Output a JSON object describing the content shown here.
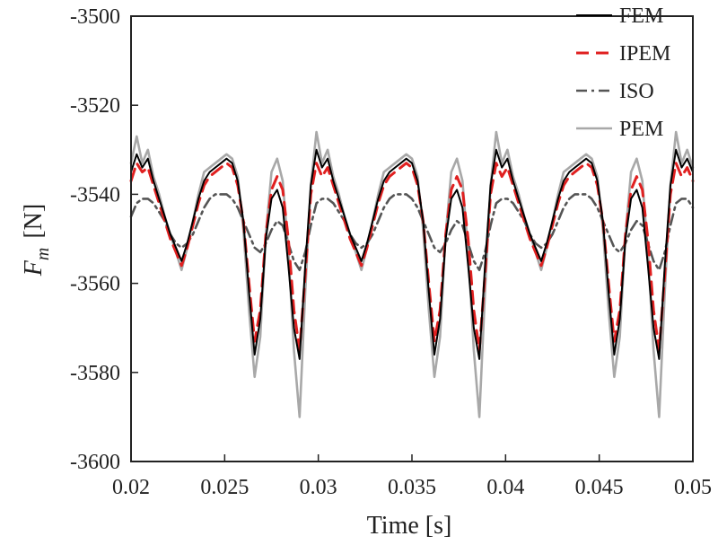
{
  "chart_data": {
    "type": "line",
    "xlabel": "Time [s]",
    "ylabel_main": "F",
    "ylabel_sub": "m",
    "ylabel_unit": "[N]",
    "xlim": [
      0.02,
      0.05
    ],
    "ylim": [
      -3600,
      -3500
    ],
    "xticks": [
      0.02,
      0.025,
      0.03,
      0.035,
      0.04,
      0.045,
      0.05
    ],
    "xtick_labels": [
      "0.02",
      "0.025",
      "0.03",
      "0.035",
      "0.04",
      "0.045",
      "0.05"
    ],
    "yticks": [
      -3500,
      -3520,
      -3540,
      -3560,
      -3580,
      -3600
    ],
    "ytick_labels": [
      "-3500",
      "-3520",
      "-3540",
      "-3560",
      "-3580",
      "-3600"
    ],
    "grid": false,
    "legend_position": "top-right",
    "series": [
      {
        "name": "FEM",
        "color": "#000000",
        "dash": "solid",
        "x": [
          0.02,
          0.0203,
          0.0206,
          0.0209,
          0.0212,
          0.0215,
          0.0218,
          0.0221,
          0.0224,
          0.0227,
          0.023,
          0.0233,
          0.0236,
          0.0239,
          0.0242,
          0.0245,
          0.0248,
          0.0251,
          0.0254,
          0.0257,
          0.026,
          0.0263,
          0.0266,
          0.0269,
          0.0272,
          0.0275,
          0.0278,
          0.0281,
          0.0284,
          0.0287,
          0.029,
          0.0293,
          0.0296,
          0.0299,
          0.0302,
          0.0305,
          0.0308,
          0.0311,
          0.0314,
          0.0317,
          0.032,
          0.0323,
          0.0326,
          0.0329,
          0.0332,
          0.0335,
          0.0338,
          0.0341,
          0.0344,
          0.0347,
          0.035,
          0.0353,
          0.0356,
          0.0359,
          0.0362,
          0.0365,
          0.0368,
          0.0371,
          0.0374,
          0.0377,
          0.038,
          0.0383,
          0.0386,
          0.0389,
          0.0392,
          0.0395,
          0.0398,
          0.0401,
          0.0404,
          0.0407,
          0.041,
          0.0413,
          0.0416,
          0.0419,
          0.0422,
          0.0425,
          0.0428,
          0.0431,
          0.0434,
          0.0437,
          0.044,
          0.0443,
          0.0446,
          0.0449,
          0.0452,
          0.0455,
          0.0458,
          0.0461,
          0.0464,
          0.0467,
          0.047,
          0.0473,
          0.0476,
          0.0479,
          0.0482,
          0.0485,
          0.0488,
          0.0491,
          0.0494,
          0.0497,
          0.05
        ],
        "y": [
          -3535,
          -3531,
          -3534,
          -3532,
          -3537,
          -3541,
          -3545,
          -3549,
          -3552,
          -3555,
          -3551,
          -3546,
          -3541,
          -3537,
          -3535,
          -3534,
          -3533,
          -3532,
          -3533,
          -3537,
          -3546,
          -3562,
          -3576,
          -3568,
          -3550,
          -3541,
          -3539,
          -3543,
          -3556,
          -3570,
          -3577,
          -3556,
          -3538,
          -3530,
          -3534,
          -3532,
          -3537,
          -3541,
          -3545,
          -3549,
          -3552,
          -3555,
          -3551,
          -3546,
          -3541,
          -3537,
          -3535,
          -3534,
          -3533,
          -3532,
          -3533,
          -3537,
          -3546,
          -3562,
          -3576,
          -3568,
          -3550,
          -3541,
          -3539,
          -3543,
          -3556,
          -3570,
          -3577,
          -3556,
          -3538,
          -3530,
          -3534,
          -3532,
          -3537,
          -3541,
          -3545,
          -3549,
          -3552,
          -3555,
          -3551,
          -3546,
          -3541,
          -3537,
          -3535,
          -3534,
          -3533,
          -3532,
          -3533,
          -3537,
          -3546,
          -3562,
          -3576,
          -3568,
          -3550,
          -3541,
          -3539,
          -3543,
          -3556,
          -3570,
          -3577,
          -3556,
          -3538,
          -3530,
          -3534,
          -3532,
          -3535
        ]
      },
      {
        "name": "IPEM",
        "color": "#e02020",
        "dash": "dashed",
        "x": [
          0.02,
          0.0203,
          0.0206,
          0.0209,
          0.0212,
          0.0215,
          0.0218,
          0.0221,
          0.0224,
          0.0227,
          0.023,
          0.0233,
          0.0236,
          0.0239,
          0.0242,
          0.0245,
          0.0248,
          0.0251,
          0.0254,
          0.0257,
          0.026,
          0.0263,
          0.0266,
          0.0269,
          0.0272,
          0.0275,
          0.0278,
          0.0281,
          0.0284,
          0.0287,
          0.029,
          0.0293,
          0.0296,
          0.0299,
          0.0302,
          0.0305,
          0.0308,
          0.0311,
          0.0314,
          0.0317,
          0.032,
          0.0323,
          0.0326,
          0.0329,
          0.0332,
          0.0335,
          0.0338,
          0.0341,
          0.0344,
          0.0347,
          0.035,
          0.0353,
          0.0356,
          0.0359,
          0.0362,
          0.0365,
          0.0368,
          0.0371,
          0.0374,
          0.0377,
          0.038,
          0.0383,
          0.0386,
          0.0389,
          0.0392,
          0.0395,
          0.0398,
          0.0401,
          0.0404,
          0.0407,
          0.041,
          0.0413,
          0.0416,
          0.0419,
          0.0422,
          0.0425,
          0.0428,
          0.0431,
          0.0434,
          0.0437,
          0.044,
          0.0443,
          0.0446,
          0.0449,
          0.0452,
          0.0455,
          0.0458,
          0.0461,
          0.0464,
          0.0467,
          0.047,
          0.0473,
          0.0476,
          0.0479,
          0.0482,
          0.0485,
          0.0488,
          0.0491,
          0.0494,
          0.0497,
          0.05
        ],
        "y": [
          -3537,
          -3533,
          -3535,
          -3534,
          -3538,
          -3542,
          -3546,
          -3550,
          -3553,
          -3556,
          -3552,
          -3547,
          -3542,
          -3538,
          -3536,
          -3535,
          -3534,
          -3533,
          -3534,
          -3538,
          -3546,
          -3560,
          -3573,
          -3566,
          -3549,
          -3539,
          -3536,
          -3539,
          -3550,
          -3566,
          -3575,
          -3558,
          -3540,
          -3533,
          -3536,
          -3534,
          -3538,
          -3542,
          -3546,
          -3550,
          -3553,
          -3556,
          -3552,
          -3547,
          -3542,
          -3538,
          -3536,
          -3535,
          -3534,
          -3533,
          -3534,
          -3538,
          -3546,
          -3560,
          -3573,
          -3566,
          -3549,
          -3539,
          -3536,
          -3539,
          -3550,
          -3566,
          -3575,
          -3558,
          -3540,
          -3533,
          -3536,
          -3534,
          -3538,
          -3542,
          -3546,
          -3550,
          -3553,
          -3556,
          -3552,
          -3547,
          -3542,
          -3538,
          -3536,
          -3535,
          -3534,
          -3533,
          -3534,
          -3538,
          -3546,
          -3560,
          -3573,
          -3566,
          -3549,
          -3539,
          -3536,
          -3539,
          -3550,
          -3566,
          -3575,
          -3558,
          -3540,
          -3533,
          -3536,
          -3534,
          -3537
        ]
      },
      {
        "name": "ISO",
        "color": "#555555",
        "dash": "dashdot",
        "x": [
          0.02,
          0.0203,
          0.0206,
          0.0209,
          0.0212,
          0.0215,
          0.0218,
          0.0221,
          0.0224,
          0.0227,
          0.023,
          0.0233,
          0.0236,
          0.0239,
          0.0242,
          0.0245,
          0.0248,
          0.0251,
          0.0254,
          0.0257,
          0.026,
          0.0263,
          0.0266,
          0.0269,
          0.0272,
          0.0275,
          0.0278,
          0.0281,
          0.0284,
          0.0287,
          0.029,
          0.0293,
          0.0296,
          0.0299,
          0.0302,
          0.0305,
          0.0308,
          0.0311,
          0.0314,
          0.0317,
          0.032,
          0.0323,
          0.0326,
          0.0329,
          0.0332,
          0.0335,
          0.0338,
          0.0341,
          0.0344,
          0.0347,
          0.035,
          0.0353,
          0.0356,
          0.0359,
          0.0362,
          0.0365,
          0.0368,
          0.0371,
          0.0374,
          0.0377,
          0.038,
          0.0383,
          0.0386,
          0.0389,
          0.0392,
          0.0395,
          0.0398,
          0.0401,
          0.0404,
          0.0407,
          0.041,
          0.0413,
          0.0416,
          0.0419,
          0.0422,
          0.0425,
          0.0428,
          0.0431,
          0.0434,
          0.0437,
          0.044,
          0.0443,
          0.0446,
          0.0449,
          0.0452,
          0.0455,
          0.0458,
          0.0461,
          0.0464,
          0.0467,
          0.047,
          0.0473,
          0.0476,
          0.0479,
          0.0482,
          0.0485,
          0.0488,
          0.0491,
          0.0494,
          0.0497,
          0.05
        ],
        "y": [
          -3545,
          -3542,
          -3541,
          -3541,
          -3542,
          -3544,
          -3546,
          -3549,
          -3551,
          -3552,
          -3551,
          -3549,
          -3546,
          -3543,
          -3541,
          -3540,
          -3540,
          -3540,
          -3541,
          -3543,
          -3546,
          -3549,
          -3552,
          -3553,
          -3551,
          -3548,
          -3546,
          -3547,
          -3551,
          -3555,
          -3557,
          -3553,
          -3547,
          -3542,
          -3541,
          -3541,
          -3542,
          -3544,
          -3546,
          -3549,
          -3551,
          -3552,
          -3551,
          -3549,
          -3546,
          -3543,
          -3541,
          -3540,
          -3540,
          -3540,
          -3541,
          -3543,
          -3546,
          -3549,
          -3552,
          -3553,
          -3551,
          -3548,
          -3546,
          -3547,
          -3551,
          -3555,
          -3557,
          -3553,
          -3547,
          -3542,
          -3541,
          -3541,
          -3542,
          -3544,
          -3546,
          -3549,
          -3551,
          -3552,
          -3551,
          -3549,
          -3546,
          -3543,
          -3541,
          -3540,
          -3540,
          -3540,
          -3541,
          -3543,
          -3546,
          -3549,
          -3552,
          -3553,
          -3551,
          -3548,
          -3546,
          -3547,
          -3551,
          -3555,
          -3557,
          -3553,
          -3547,
          -3542,
          -3541,
          -3541,
          -3543
        ]
      },
      {
        "name": "PEM",
        "color": "#a8a8a8",
        "dash": "solid",
        "x": [
          0.02,
          0.0203,
          0.0206,
          0.0209,
          0.0212,
          0.0215,
          0.0218,
          0.0221,
          0.0224,
          0.0227,
          0.023,
          0.0233,
          0.0236,
          0.0239,
          0.0242,
          0.0245,
          0.0248,
          0.0251,
          0.0254,
          0.0257,
          0.026,
          0.0263,
          0.0266,
          0.0269,
          0.0272,
          0.0275,
          0.0278,
          0.0281,
          0.0284,
          0.0287,
          0.029,
          0.0293,
          0.0296,
          0.0299,
          0.0302,
          0.0305,
          0.0308,
          0.0311,
          0.0314,
          0.0317,
          0.032,
          0.0323,
          0.0326,
          0.0329,
          0.0332,
          0.0335,
          0.0338,
          0.0341,
          0.0344,
          0.0347,
          0.035,
          0.0353,
          0.0356,
          0.0359,
          0.0362,
          0.0365,
          0.0368,
          0.0371,
          0.0374,
          0.0377,
          0.038,
          0.0383,
          0.0386,
          0.0389,
          0.0392,
          0.0395,
          0.0398,
          0.0401,
          0.0404,
          0.0407,
          0.041,
          0.0413,
          0.0416,
          0.0419,
          0.0422,
          0.0425,
          0.0428,
          0.0431,
          0.0434,
          0.0437,
          0.044,
          0.0443,
          0.0446,
          0.0449,
          0.0452,
          0.0455,
          0.0458,
          0.0461,
          0.0464,
          0.0467,
          0.047,
          0.0473,
          0.0476,
          0.0479,
          0.0482,
          0.0485,
          0.0488,
          0.0491,
          0.0494,
          0.0497,
          0.05
        ],
        "y": [
          -3533,
          -3527,
          -3533,
          -3530,
          -3536,
          -3540,
          -3545,
          -3549,
          -3553,
          -3557,
          -3552,
          -3546,
          -3540,
          -3535,
          -3534,
          -3533,
          -3532,
          -3531,
          -3532,
          -3536,
          -3548,
          -3566,
          -3581,
          -3572,
          -3549,
          -3535,
          -3532,
          -3537,
          -3553,
          -3575,
          -3590,
          -3562,
          -3538,
          -3526,
          -3533,
          -3530,
          -3536,
          -3540,
          -3545,
          -3549,
          -3553,
          -3557,
          -3552,
          -3546,
          -3540,
          -3535,
          -3534,
          -3533,
          -3532,
          -3531,
          -3532,
          -3536,
          -3548,
          -3566,
          -3581,
          -3572,
          -3549,
          -3535,
          -3532,
          -3537,
          -3553,
          -3575,
          -3590,
          -3562,
          -3538,
          -3526,
          -3533,
          -3530,
          -3536,
          -3540,
          -3545,
          -3549,
          -3553,
          -3557,
          -3552,
          -3546,
          -3540,
          -3535,
          -3534,
          -3533,
          -3532,
          -3531,
          -3532,
          -3536,
          -3548,
          -3566,
          -3581,
          -3572,
          -3549,
          -3535,
          -3532,
          -3537,
          -3553,
          -3575,
          -3590,
          -3562,
          -3538,
          -3526,
          -3533,
          -3530,
          -3534
        ]
      }
    ]
  }
}
